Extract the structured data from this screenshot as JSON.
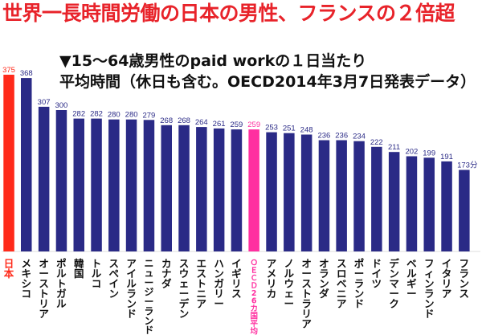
{
  "title": "世界一長時間労働の日本の男性、フランスの２倍超",
  "subtitle_line1": "▼15～64歳男性のpaid workの１日当たり",
  "subtitle_line2": "平均時間（休日も含む。OECD2014年3月7日発表データ）",
  "colors": {
    "title": "#e8232a",
    "japan": "#ff2a1a",
    "oecd_avg": "#ff2fa0",
    "bars": "#2a2a86",
    "text": "#111111"
  },
  "chart_data": {
    "type": "bar",
    "title": "世界一長時間労働の日本の男性、フランスの２倍超",
    "categories": [
      "日本",
      "メキシコ",
      "オーストリア",
      "ポルトガル",
      "韓国",
      "トルコ",
      "スペイン",
      "アイルランド",
      "ニュージーランド",
      "カナダ",
      "スウェーデン",
      "エストニア",
      "ハンガリー",
      "イギリス",
      "ＯＥＣＤ26カ国平均",
      "アメリカ",
      "ノルウェー",
      "オーストラリア",
      "オランダ",
      "スロベニア",
      "ポーランド",
      "ドイツ",
      "デンマーク",
      "ベルギー",
      "フィンランド",
      "イタリア",
      "フランス"
    ],
    "value_labels": [
      "375",
      "368",
      "307",
      "300",
      "282",
      "282",
      "280",
      "280",
      "279",
      "268",
      "268",
      "264",
      "261",
      "259",
      "259",
      "253",
      "251",
      "248",
      "236",
      "236",
      "234",
      "222",
      "211",
      "202",
      "199",
      "191",
      "173分"
    ],
    "series": [
      {
        "values": [
          375,
          368,
          307,
          300,
          282,
          282,
          280,
          280,
          279,
          268,
          268,
          264,
          261,
          259,
          259,
          253,
          251,
          248,
          236,
          236,
          234,
          222,
          211,
          202,
          199,
          191,
          173
        ]
      }
    ],
    "highlight": {
      "日本": "#ff2a1a",
      "ＯＥＣＤ26カ国平均": "#ff2fa0"
    },
    "ylim": [
      0,
      375
    ],
    "grid": false
  }
}
